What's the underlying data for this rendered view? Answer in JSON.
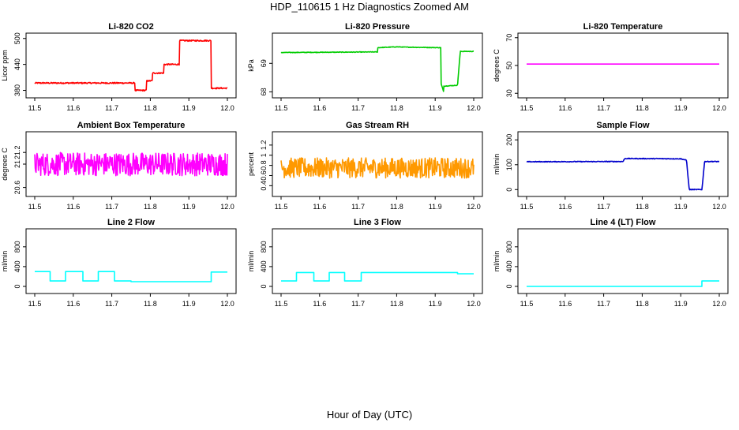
{
  "figure": {
    "title": "HDP_110615  1 Hz Diagnostics Zoomed AM",
    "xlabel": "Hour of Day (UTC)"
  },
  "chart_data": [
    {
      "type": "line",
      "title": "Li-820 CO2",
      "ylabel": "Licor ppm",
      "color": "#ff0000",
      "xlim": [
        11.5,
        12.0
      ],
      "ylim": [
        370,
        505
      ],
      "xticks": [
        "11.5",
        "11.6",
        "11.7",
        "11.8",
        "11.9",
        "12.0"
      ],
      "yticks": [
        380,
        440,
        500
      ],
      "noise": 1.5,
      "series": [
        {
          "x": [
            11.5,
            11.76,
            11.76,
            11.79,
            11.79,
            11.805,
            11.805,
            11.835,
            11.835,
            11.875,
            11.875,
            11.958,
            11.958,
            12.0
          ],
          "y": [
            397,
            397,
            380,
            380,
            402,
            402,
            420,
            420,
            440,
            440,
            495,
            495,
            385,
            385
          ]
        }
      ]
    },
    {
      "type": "line",
      "title": "Li-820 Pressure",
      "ylabel": "kPa",
      "color": "#00cc00",
      "xlim": [
        11.5,
        12.0
      ],
      "ylim": [
        67.9,
        69.95
      ],
      "xticks": [
        "11.5",
        "11.6",
        "11.7",
        "11.8",
        "11.9",
        "12.0"
      ],
      "yticks": [
        68.0,
        69.0
      ],
      "noise": 0.01,
      "series": [
        {
          "x": [
            11.5,
            11.75,
            11.75,
            11.8,
            11.82,
            11.915,
            11.915,
            11.922,
            11.922,
            11.958,
            11.958,
            11.965,
            11.965,
            12.0
          ],
          "y": [
            69.38,
            69.4,
            69.55,
            69.58,
            69.57,
            69.55,
            68.3,
            68.0,
            68.2,
            68.23,
            68.23,
            69.4,
            69.42,
            69.42
          ]
        }
      ]
    },
    {
      "type": "line",
      "title": "Li-820 Temperature",
      "ylabel": "degrees C",
      "color": "#ff00ff",
      "xlim": [
        11.5,
        12.0
      ],
      "ylim": [
        29,
        71
      ],
      "xticks": [
        "11.5",
        "11.6",
        "11.7",
        "11.8",
        "11.9",
        "12.0"
      ],
      "yticks": [
        30,
        50,
        70
      ],
      "noise": 0,
      "series": [
        {
          "x": [
            11.5,
            12.0
          ],
          "y": [
            51.0,
            51.0
          ]
        }
      ]
    },
    {
      "type": "line",
      "title": "Ambient Box Temperature",
      "ylabel": "degrees C",
      "color": "#ff00ff",
      "xlim": [
        11.5,
        12.0
      ],
      "ylim": [
        20.5,
        21.5
      ],
      "xticks": [
        "11.5",
        "11.6",
        "11.7",
        "11.8",
        "11.9",
        "12.0"
      ],
      "yticks": [
        20.6,
        21.0,
        21.2
      ],
      "noise": 0.2,
      "series": [
        {
          "x": [
            11.5,
            12.0
          ],
          "y": [
            21.0,
            21.0
          ]
        }
      ]
    },
    {
      "type": "line",
      "title": "Gas Stream RH",
      "ylabel": "percent",
      "color": "#ff9900",
      "xlim": [
        11.5,
        12.0
      ],
      "ylim": [
        0.25,
        1.4
      ],
      "xticks": [
        "11.5",
        "11.6",
        "11.7",
        "11.8",
        "11.9",
        "12.0"
      ],
      "yticks": [
        0.4,
        0.6,
        0.8,
        1.0,
        1.2
      ],
      "noise": 0.2,
      "series": [
        {
          "x": [
            11.5,
            12.0
          ],
          "y": [
            0.75,
            0.75
          ]
        }
      ]
    },
    {
      "type": "line",
      "title": "Sample Flow",
      "ylabel": "ml/min",
      "color": "#0000cc",
      "xlim": [
        11.5,
        12.0
      ],
      "ylim": [
        -15,
        220
      ],
      "xticks": [
        "11.5",
        "11.6",
        "11.7",
        "11.8",
        "11.9",
        "12.0"
      ],
      "yticks": [
        0,
        100,
        200
      ],
      "noise": 1.5,
      "series": [
        {
          "x": [
            11.5,
            11.75,
            11.755,
            11.9,
            11.915,
            11.922,
            11.955,
            11.962,
            12.0
          ],
          "y": [
            112,
            113,
            125,
            124,
            118,
            0,
            0,
            113,
            113
          ]
        }
      ]
    },
    {
      "type": "line",
      "title": "Line 2 Flow",
      "ylabel": "ml/min",
      "color": "#00ffff",
      "xlim": [
        11.5,
        12.0
      ],
      "ylim": [
        -80,
        1100
      ],
      "xticks": [
        "11.5",
        "11.6",
        "11.7",
        "11.8",
        "11.9",
        "12.0"
      ],
      "yticks": [
        0,
        400,
        800
      ],
      "noise": 0,
      "series": [
        {
          "x": [
            11.5,
            11.54,
            11.54,
            11.58,
            11.58,
            11.625,
            11.625,
            11.665,
            11.665,
            11.707,
            11.707,
            11.75,
            11.75,
            11.958,
            11.958,
            12.0
          ],
          "y": [
            300,
            300,
            110,
            110,
            300,
            300,
            110,
            110,
            300,
            300,
            110,
            110,
            95,
            95,
            290,
            290
          ]
        }
      ]
    },
    {
      "type": "line",
      "title": "Line 3 Flow",
      "ylabel": "ml/min",
      "color": "#00ffff",
      "xlim": [
        11.5,
        12.0
      ],
      "ylim": [
        -80,
        1100
      ],
      "xticks": [
        "11.5",
        "11.6",
        "11.7",
        "11.8",
        "11.9",
        "12.0"
      ],
      "yticks": [
        0,
        400,
        800
      ],
      "noise": 0,
      "series": [
        {
          "x": [
            11.5,
            11.54,
            11.54,
            11.585,
            11.585,
            11.625,
            11.625,
            11.665,
            11.665,
            11.708,
            11.708,
            11.958,
            11.958,
            12.0
          ],
          "y": [
            110,
            110,
            280,
            280,
            110,
            110,
            280,
            280,
            110,
            110,
            280,
            280,
            255,
            255
          ]
        }
      ]
    },
    {
      "type": "line",
      "title": "Line 4 (LT) Flow",
      "ylabel": "ml/min",
      "color": "#00ffff",
      "xlim": [
        11.5,
        12.0
      ],
      "ylim": [
        -80,
        1100
      ],
      "xticks": [
        "11.5",
        "11.6",
        "11.7",
        "11.8",
        "11.9",
        "12.0"
      ],
      "yticks": [
        0,
        400,
        800
      ],
      "noise": 0,
      "series": [
        {
          "x": [
            11.5,
            11.955,
            11.955,
            12.0
          ],
          "y": [
            0,
            0,
            110,
            110
          ]
        }
      ]
    }
  ]
}
